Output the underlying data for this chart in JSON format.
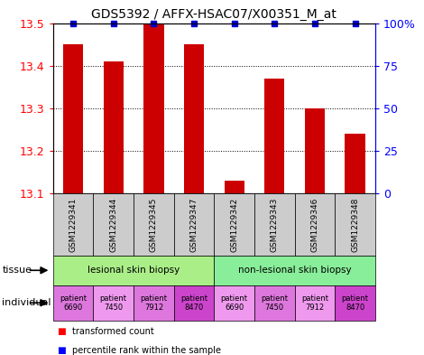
{
  "title": "GDS5392 / AFFX-HSAC07/X00351_M_at",
  "samples": [
    "GSM1229341",
    "GSM1229344",
    "GSM1229345",
    "GSM1229347",
    "GSM1229342",
    "GSM1229343",
    "GSM1229346",
    "GSM1229348"
  ],
  "transformed_counts": [
    13.45,
    13.41,
    13.5,
    13.45,
    13.13,
    13.37,
    13.3,
    13.24
  ],
  "percentile_ranks": [
    100,
    100,
    100,
    100,
    100,
    100,
    100,
    100
  ],
  "ylim": [
    13.1,
    13.5
  ],
  "yticks": [
    13.1,
    13.2,
    13.3,
    13.4,
    13.5
  ],
  "right_yticks": [
    0,
    25,
    50,
    75,
    100
  ],
  "bar_color": "#cc0000",
  "dot_color": "#0000cc",
  "tissue_groups": [
    {
      "label": "lesional skin biopsy",
      "start": 0,
      "end": 4,
      "color": "#aaee88"
    },
    {
      "label": "non-lesional skin biopsy",
      "start": 4,
      "end": 8,
      "color": "#88ee99"
    }
  ],
  "ind_labels": [
    "patient\n6690",
    "patient\n7450",
    "patient\n7912",
    "patient\n8470",
    "patient\n6690",
    "patient\n7450",
    "patient\n7912",
    "patient\n8470"
  ],
  "ind_colors": [
    "#dd77dd",
    "#ee99ee",
    "#dd77dd",
    "#cc44cc",
    "#ee99ee",
    "#dd77dd",
    "#ee99ee",
    "#cc44cc"
  ],
  "legend_red_label": "transformed count",
  "legend_blue_label": "percentile rank within the sample",
  "tissue_label": "tissue",
  "individual_label": "individual",
  "sample_box_color": "#cccccc",
  "title_fontsize": 10,
  "bar_width": 0.5
}
